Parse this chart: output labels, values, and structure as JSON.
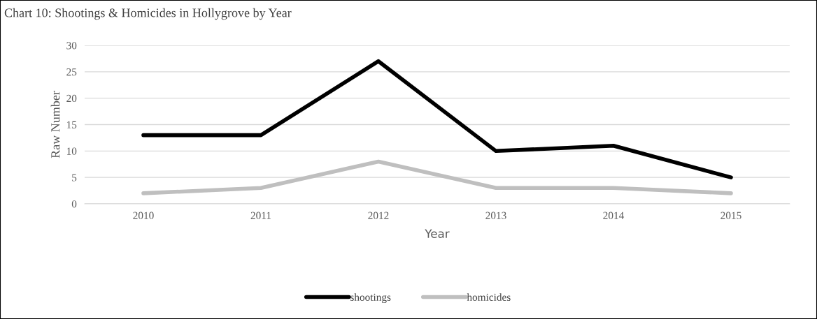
{
  "chart_data": {
    "type": "line",
    "title": "Chart 10: Shootings & Homicides in Hollygrove by Year",
    "xlabel": "Year",
    "ylabel": "Raw Number",
    "categories": [
      "2010",
      "2011",
      "2012",
      "2013",
      "2014",
      "2015"
    ],
    "series": [
      {
        "name": "shootings",
        "color": "#000000",
        "values": [
          13,
          13,
          27,
          10,
          11,
          5
        ]
      },
      {
        "name": "homicides",
        "color": "#bfbfbf",
        "values": [
          2,
          3,
          8,
          3,
          3,
          2
        ]
      }
    ],
    "ylim": [
      0,
      30
    ],
    "yticks": [
      0,
      5,
      10,
      15,
      20,
      25,
      30
    ],
    "grid": "y",
    "legend": "bottom",
    "marker": "none",
    "line_style": "solid"
  }
}
